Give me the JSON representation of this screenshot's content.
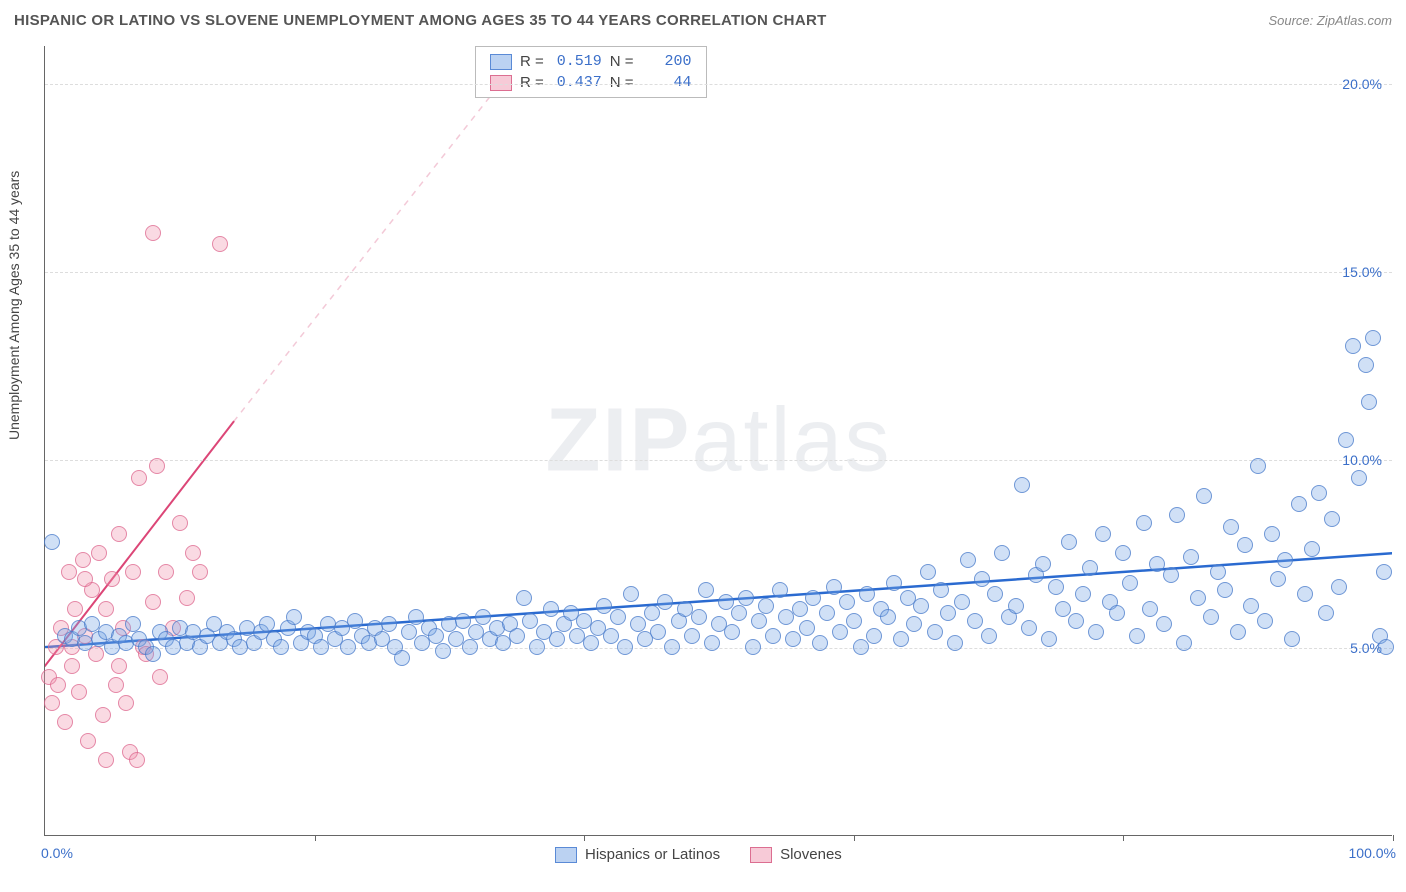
{
  "header": {
    "title": "HISPANIC OR LATINO VS SLOVENE UNEMPLOYMENT AMONG AGES 35 TO 44 YEARS CORRELATION CHART",
    "source": "Source: ZipAtlas.com"
  },
  "chart": {
    "type": "scatter",
    "y_axis_label": "Unemployment Among Ages 35 to 44 years",
    "xlim": [
      0,
      100
    ],
    "ylim": [
      0,
      21
    ],
    "background_color": "#ffffff",
    "grid_color": "#dddddd",
    "axis_color": "#666666",
    "label_color": "#3b6fc9",
    "y_ticks": [
      5,
      10,
      15,
      20
    ],
    "y_tick_labels": [
      "5.0%",
      "10.0%",
      "15.0%",
      "20.0%"
    ],
    "x_grid_positions": [
      20,
      40,
      60,
      80,
      100
    ],
    "x_tick_labels": {
      "left": "0.0%",
      "right": "100.0%"
    },
    "watermark": {
      "bold": "ZIP",
      "rest": "atlas"
    },
    "legend_top": {
      "rows": [
        {
          "swatch": "blue",
          "r_label": "R =",
          "r_value": "0.519",
          "n_label": "N =",
          "n_value": "200"
        },
        {
          "swatch": "pink",
          "r_label": "R =",
          "r_value": "0.437",
          "n_label": "N =",
          "n_value": "44"
        }
      ]
    },
    "legend_bottom": {
      "items": [
        {
          "swatch": "blue",
          "label": "Hispanics or Latinos"
        },
        {
          "swatch": "pink",
          "label": "Slovenes"
        }
      ]
    },
    "series_blue": {
      "color_fill": "rgba(120,165,230,0.35)",
      "color_stroke": "rgba(70,120,200,0.7)",
      "marker_size": 16,
      "trend": {
        "x1": 0,
        "y1": 5.0,
        "x2": 100,
        "y2": 7.5,
        "color": "#2a6ad0",
        "width": 2.5
      },
      "points": [
        [
          0.5,
          7.8
        ],
        [
          1.5,
          5.3
        ],
        [
          2,
          5.2
        ],
        [
          2.5,
          5.5
        ],
        [
          3,
          5.1
        ],
        [
          3.5,
          5.6
        ],
        [
          4,
          5.2
        ],
        [
          4.5,
          5.4
        ],
        [
          5,
          5.0
        ],
        [
          5.5,
          5.3
        ],
        [
          6,
          5.1
        ],
        [
          6.5,
          5.6
        ],
        [
          7,
          5.2
        ],
        [
          7.5,
          5.0
        ],
        [
          8,
          4.8
        ],
        [
          8.5,
          5.4
        ],
        [
          9,
          5.2
        ],
        [
          9.5,
          5.0
        ],
        [
          10,
          5.5
        ],
        [
          10.5,
          5.1
        ],
        [
          11,
          5.4
        ],
        [
          11.5,
          5.0
        ],
        [
          12,
          5.3
        ],
        [
          12.5,
          5.6
        ],
        [
          13,
          5.1
        ],
        [
          13.5,
          5.4
        ],
        [
          14,
          5.2
        ],
        [
          14.5,
          5.0
        ],
        [
          15,
          5.5
        ],
        [
          15.5,
          5.1
        ],
        [
          16,
          5.4
        ],
        [
          16.5,
          5.6
        ],
        [
          17,
          5.2
        ],
        [
          17.5,
          5.0
        ],
        [
          18,
          5.5
        ],
        [
          18.5,
          5.8
        ],
        [
          19,
          5.1
        ],
        [
          19.5,
          5.4
        ],
        [
          20,
          5.3
        ],
        [
          20.5,
          5.0
        ],
        [
          21,
          5.6
        ],
        [
          21.5,
          5.2
        ],
        [
          22,
          5.5
        ],
        [
          22.5,
          5.0
        ],
        [
          23,
          5.7
        ],
        [
          23.5,
          5.3
        ],
        [
          24,
          5.1
        ],
        [
          24.5,
          5.5
        ],
        [
          25,
          5.2
        ],
        [
          25.5,
          5.6
        ],
        [
          26,
          5.0
        ],
        [
          26.5,
          4.7
        ],
        [
          27,
          5.4
        ],
        [
          27.5,
          5.8
        ],
        [
          28,
          5.1
        ],
        [
          28.5,
          5.5
        ],
        [
          29,
          5.3
        ],
        [
          29.5,
          4.9
        ],
        [
          30,
          5.6
        ],
        [
          30.5,
          5.2
        ],
        [
          31,
          5.7
        ],
        [
          31.5,
          5.0
        ],
        [
          32,
          5.4
        ],
        [
          32.5,
          5.8
        ],
        [
          33,
          5.2
        ],
        [
          33.5,
          5.5
        ],
        [
          34,
          5.1
        ],
        [
          34.5,
          5.6
        ],
        [
          35,
          5.3
        ],
        [
          35.5,
          6.3
        ],
        [
          36,
          5.7
        ],
        [
          36.5,
          5.0
        ],
        [
          37,
          5.4
        ],
        [
          37.5,
          6.0
        ],
        [
          38,
          5.2
        ],
        [
          38.5,
          5.6
        ],
        [
          39,
          5.9
        ],
        [
          39.5,
          5.3
        ],
        [
          40,
          5.7
        ],
        [
          40.5,
          5.1
        ],
        [
          41,
          5.5
        ],
        [
          41.5,
          6.1
        ],
        [
          42,
          5.3
        ],
        [
          42.5,
          5.8
        ],
        [
          43,
          5.0
        ],
        [
          43.5,
          6.4
        ],
        [
          44,
          5.6
        ],
        [
          44.5,
          5.2
        ],
        [
          45,
          5.9
        ],
        [
          45.5,
          5.4
        ],
        [
          46,
          6.2
        ],
        [
          46.5,
          5.0
        ],
        [
          47,
          5.7
        ],
        [
          47.5,
          6.0
        ],
        [
          48,
          5.3
        ],
        [
          48.5,
          5.8
        ],
        [
          49,
          6.5
        ],
        [
          49.5,
          5.1
        ],
        [
          50,
          5.6
        ],
        [
          50.5,
          6.2
        ],
        [
          51,
          5.4
        ],
        [
          51.5,
          5.9
        ],
        [
          52,
          6.3
        ],
        [
          52.5,
          5.0
        ],
        [
          53,
          5.7
        ],
        [
          53.5,
          6.1
        ],
        [
          54,
          5.3
        ],
        [
          54.5,
          6.5
        ],
        [
          55,
          5.8
        ],
        [
          55.5,
          5.2
        ],
        [
          56,
          6.0
        ],
        [
          56.5,
          5.5
        ],
        [
          57,
          6.3
        ],
        [
          57.5,
          5.1
        ],
        [
          58,
          5.9
        ],
        [
          58.5,
          6.6
        ],
        [
          59,
          5.4
        ],
        [
          59.5,
          6.2
        ],
        [
          60,
          5.7
        ],
        [
          60.5,
          5.0
        ],
        [
          61,
          6.4
        ],
        [
          61.5,
          5.3
        ],
        [
          62,
          6.0
        ],
        [
          62.5,
          5.8
        ],
        [
          63,
          6.7
        ],
        [
          63.5,
          5.2
        ],
        [
          64,
          6.3
        ],
        [
          64.5,
          5.6
        ],
        [
          65,
          6.1
        ],
        [
          65.5,
          7.0
        ],
        [
          66,
          5.4
        ],
        [
          66.5,
          6.5
        ],
        [
          67,
          5.9
        ],
        [
          67.5,
          5.1
        ],
        [
          68,
          6.2
        ],
        [
          68.5,
          7.3
        ],
        [
          69,
          5.7
        ],
        [
          69.5,
          6.8
        ],
        [
          70,
          5.3
        ],
        [
          70.5,
          6.4
        ],
        [
          71,
          7.5
        ],
        [
          71.5,
          5.8
        ],
        [
          72,
          6.1
        ],
        [
          72.5,
          9.3
        ],
        [
          73,
          5.5
        ],
        [
          73.5,
          6.9
        ],
        [
          74,
          7.2
        ],
        [
          74.5,
          5.2
        ],
        [
          75,
          6.6
        ],
        [
          75.5,
          6.0
        ],
        [
          76,
          7.8
        ],
        [
          76.5,
          5.7
        ],
        [
          77,
          6.4
        ],
        [
          77.5,
          7.1
        ],
        [
          78,
          5.4
        ],
        [
          78.5,
          8.0
        ],
        [
          79,
          6.2
        ],
        [
          79.5,
          5.9
        ],
        [
          80,
          7.5
        ],
        [
          80.5,
          6.7
        ],
        [
          81,
          5.3
        ],
        [
          81.5,
          8.3
        ],
        [
          82,
          6.0
        ],
        [
          82.5,
          7.2
        ],
        [
          83,
          5.6
        ],
        [
          83.5,
          6.9
        ],
        [
          84,
          8.5
        ],
        [
          84.5,
          5.1
        ],
        [
          85,
          7.4
        ],
        [
          85.5,
          6.3
        ],
        [
          86,
          9.0
        ],
        [
          86.5,
          5.8
        ],
        [
          87,
          7.0
        ],
        [
          87.5,
          6.5
        ],
        [
          88,
          8.2
        ],
        [
          88.5,
          5.4
        ],
        [
          89,
          7.7
        ],
        [
          89.5,
          6.1
        ],
        [
          90,
          9.8
        ],
        [
          90.5,
          5.7
        ],
        [
          91,
          8.0
        ],
        [
          91.5,
          6.8
        ],
        [
          92,
          7.3
        ],
        [
          92.5,
          5.2
        ],
        [
          93,
          8.8
        ],
        [
          93.5,
          6.4
        ],
        [
          94,
          7.6
        ],
        [
          94.5,
          9.1
        ],
        [
          95,
          5.9
        ],
        [
          95.5,
          8.4
        ],
        [
          96,
          6.6
        ],
        [
          96.5,
          10.5
        ],
        [
          97,
          13.0
        ],
        [
          97.5,
          9.5
        ],
        [
          98,
          12.5
        ],
        [
          98.2,
          11.5
        ],
        [
          98.5,
          13.2
        ],
        [
          99,
          5.3
        ],
        [
          99.3,
          7.0
        ],
        [
          99.5,
          5.0
        ]
      ]
    },
    "series_pink": {
      "color_fill": "rgba(240,150,175,0.35)",
      "color_stroke": "rgba(220,100,140,0.7)",
      "marker_size": 16,
      "trend_solid": {
        "x1": 0,
        "y1": 4.5,
        "x2": 14,
        "y2": 11.0,
        "color": "#dc4677",
        "width": 2
      },
      "trend_dash": {
        "x1": 14,
        "y1": 11.0,
        "x2": 36,
        "y2": 21.0,
        "color": "rgba(220,100,140,0.35)",
        "width": 1.5
      },
      "points": [
        [
          0.3,
          4.2
        ],
        [
          0.5,
          3.5
        ],
        [
          0.8,
          5.0
        ],
        [
          1.0,
          4.0
        ],
        [
          1.2,
          5.5
        ],
        [
          1.5,
          3.0
        ],
        [
          1.8,
          7.0
        ],
        [
          2.0,
          4.5
        ],
        [
          2.2,
          6.0
        ],
        [
          2.5,
          3.8
        ],
        [
          2.8,
          7.3
        ],
        [
          3.0,
          5.3
        ],
        [
          3.2,
          2.5
        ],
        [
          3.5,
          6.5
        ],
        [
          3.8,
          4.8
        ],
        [
          4.0,
          7.5
        ],
        [
          4.3,
          3.2
        ],
        [
          4.5,
          2.0
        ],
        [
          5.0,
          6.8
        ],
        [
          5.3,
          4.0
        ],
        [
          5.5,
          8.0
        ],
        [
          5.8,
          5.5
        ],
        [
          6.0,
          3.5
        ],
        [
          6.3,
          2.2
        ],
        [
          6.5,
          7.0
        ],
        [
          6.8,
          2.0
        ],
        [
          7.0,
          9.5
        ],
        [
          7.3,
          5.0
        ],
        [
          7.5,
          4.8
        ],
        [
          8.0,
          6.2
        ],
        [
          8.3,
          9.8
        ],
        [
          8.5,
          4.2
        ],
        [
          9.0,
          7.0
        ],
        [
          9.5,
          5.5
        ],
        [
          10.0,
          8.3
        ],
        [
          10.5,
          6.3
        ],
        [
          11.0,
          7.5
        ],
        [
          11.5,
          7.0
        ],
        [
          8.0,
          16.0
        ],
        [
          13.0,
          15.7
        ],
        [
          4.5,
          6.0
        ],
        [
          5.5,
          4.5
        ],
        [
          3.0,
          6.8
        ],
        [
          2.0,
          5.0
        ]
      ]
    }
  }
}
